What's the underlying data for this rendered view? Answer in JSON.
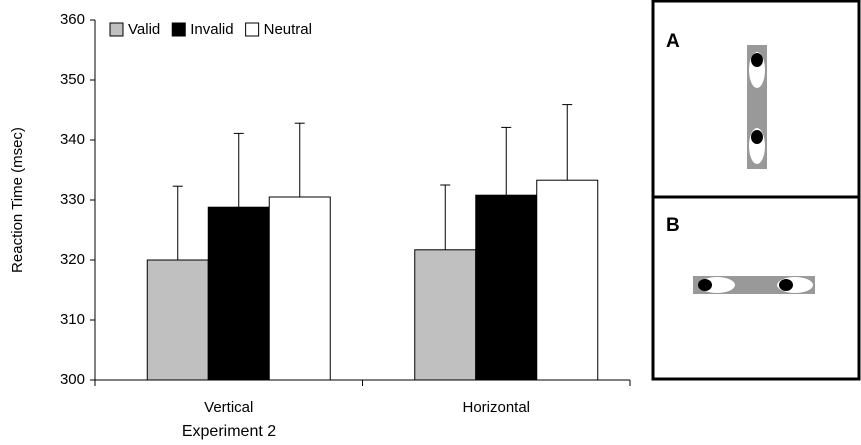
{
  "chart_data": {
    "type": "bar",
    "x_label": "Experiment 2",
    "y_label": "Reaction Time (msec)",
    "categories": [
      "Vertical",
      "Horizontal"
    ],
    "series": [
      {
        "name": "Valid",
        "color": "#c0c0c0",
        "values": [
          320,
          321.7
        ],
        "errors": [
          12.3,
          10.8
        ]
      },
      {
        "name": "Invalid",
        "color": "#000000",
        "values": [
          328.8,
          330.8
        ],
        "errors": [
          12.3,
          11.3
        ]
      },
      {
        "name": "Neutral",
        "color": "#ffffff",
        "values": [
          330.5,
          333.3
        ],
        "errors": [
          12.3,
          12.6
        ]
      }
    ],
    "ylim": [
      300,
      360
    ],
    "yticks": [
      300,
      310,
      320,
      330,
      340,
      350,
      360
    ],
    "legend": "top-left"
  },
  "panels": [
    {
      "label": "A"
    },
    {
      "label": "B"
    }
  ]
}
